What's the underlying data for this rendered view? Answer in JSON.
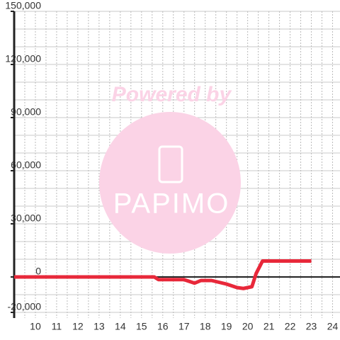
{
  "chart_data": {
    "type": "line",
    "watermark": {
      "text": "Powered by",
      "logo": "PAPIMO"
    },
    "x": [
      9,
      15.6,
      15.8,
      17,
      17.5,
      17.8,
      18.3,
      19,
      19.5,
      19.8,
      20.2,
      20.4,
      20.7,
      23
    ],
    "series": [
      {
        "color": "#e8283a",
        "values": [
          0,
          0,
          -1500,
          -1500,
          -3500,
          -2000,
          -2000,
          -4000,
          -6000,
          -6500,
          -5500,
          2000,
          9000,
          9000
        ]
      }
    ],
    "xlim": [
      9,
      24.35
    ],
    "xticks": [
      10,
      11,
      12,
      13,
      14,
      15,
      16,
      17,
      18,
      19,
      20,
      21,
      22,
      23,
      24
    ],
    "ylim": [
      -20000,
      150000
    ],
    "yticks": [
      {
        "value": -20000,
        "label": "-20,000"
      },
      0,
      {
        "value": 30000,
        "label": "30,000"
      },
      {
        "value": 60000,
        "label": "60,000"
      },
      {
        "value": 90000,
        "label": "90,000"
      },
      {
        "value": 120000,
        "label": "120,000"
      },
      {
        "value": 150000,
        "label": "150,000"
      }
    ],
    "grid_yticks": [
      -20000,
      -10000,
      10000,
      20000,
      30000,
      40000,
      50000,
      60000,
      70000,
      80000,
      90000,
      100000,
      110000,
      120000,
      130000,
      140000,
      150000
    ],
    "grid_xticks": [
      9.5,
      10,
      10.5,
      11,
      11.5,
      12,
      12.5,
      13,
      13.5,
      14,
      14.5,
      15,
      15.5,
      16,
      16.5,
      17,
      17.5,
      18,
      18.5,
      19,
      19.5,
      20,
      20.5,
      21,
      21.5,
      22,
      22.5,
      23,
      23.5,
      24
    ],
    "grid": true
  }
}
